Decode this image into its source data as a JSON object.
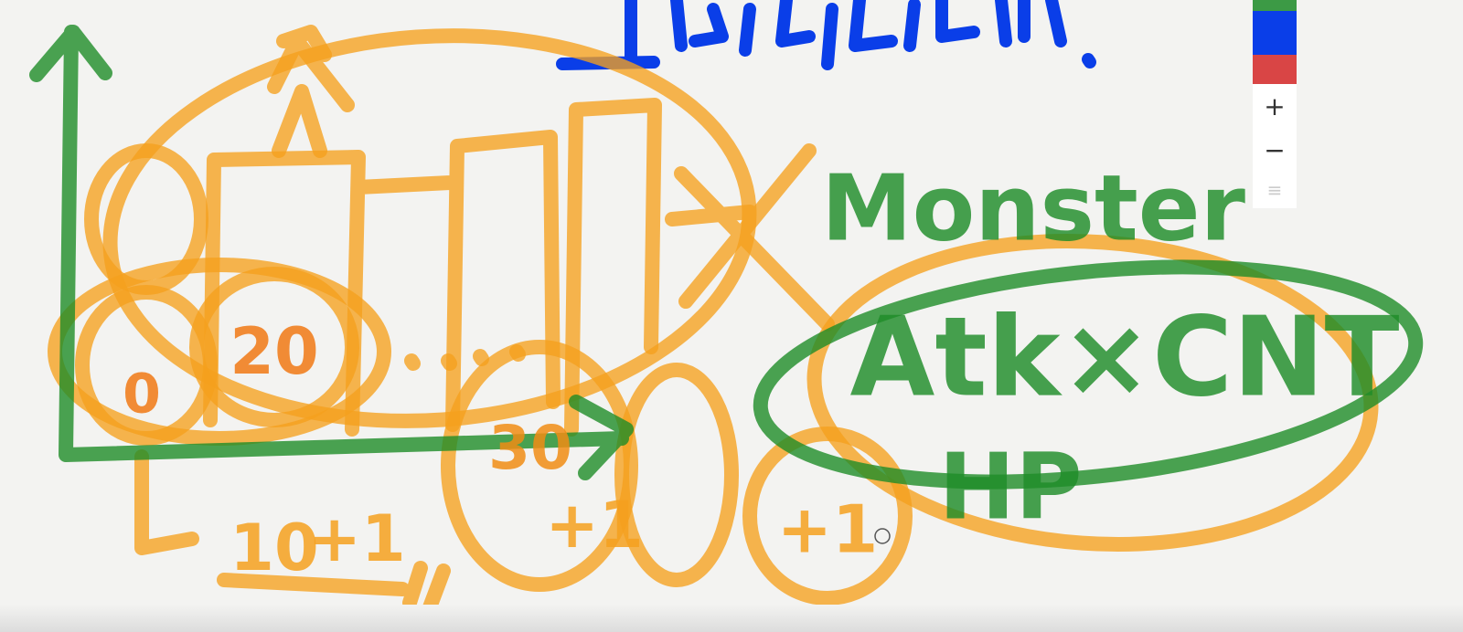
{
  "toolbar": {
    "zoom_in": "+",
    "zoom_out": "−"
  },
  "sketch": {
    "labels": [
      {
        "text": "20"
      },
      {
        "text": "30"
      },
      {
        "text": "0"
      },
      {
        "text": "10"
      },
      {
        "text": "+1"
      },
      {
        "text": "+1"
      },
      {
        "text": "+1"
      },
      {
        "text": "Monster"
      },
      {
        "text": "Atk×CNT"
      },
      {
        "text": "HP"
      }
    ]
  }
}
